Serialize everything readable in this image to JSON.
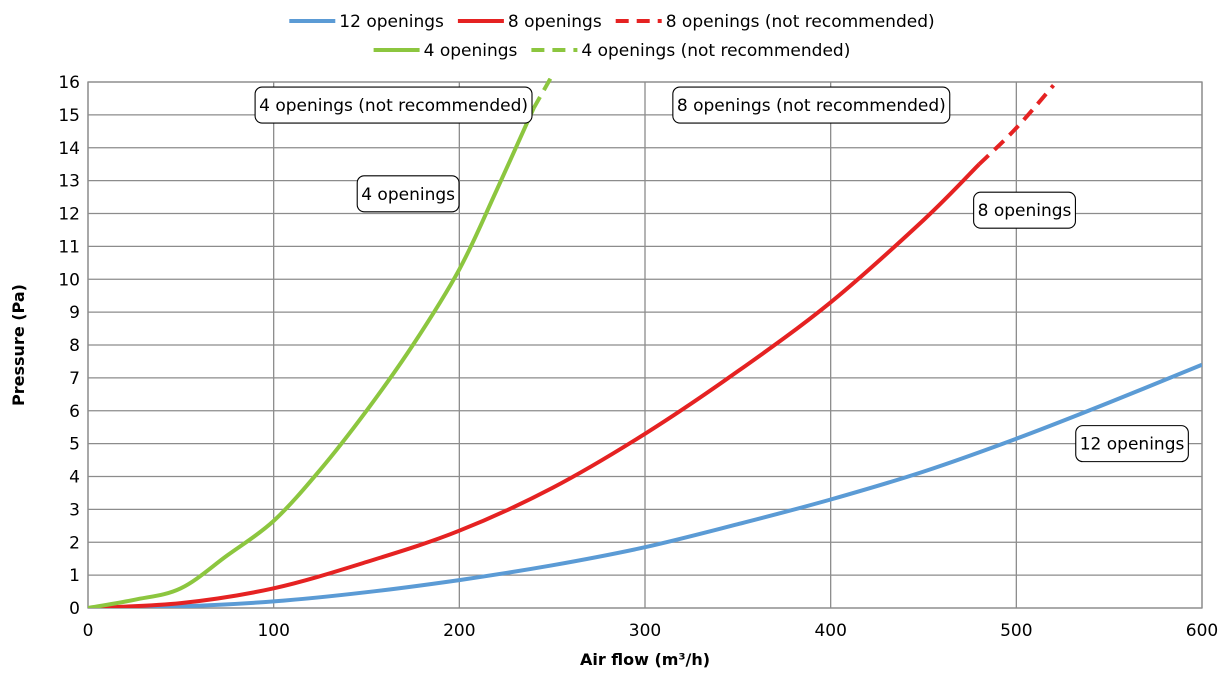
{
  "chart_data": {
    "type": "line",
    "title": "",
    "xlabel": "Air flow (m³/h)",
    "ylabel": "Pressure (Pa)",
    "xlim": [
      0,
      600
    ],
    "ylim": [
      0,
      16
    ],
    "x_ticks": [
      0,
      100,
      200,
      300,
      400,
      500,
      600
    ],
    "y_ticks": [
      0,
      1,
      2,
      3,
      4,
      5,
      6,
      7,
      8,
      9,
      10,
      11,
      12,
      13,
      14,
      15,
      16
    ],
    "grid": true,
    "legend_position": "top",
    "series": [
      {
        "name": "12 openings",
        "color": "#5b9bd5",
        "style": "solid",
        "x": [
          0,
          50,
          100,
          150,
          200,
          250,
          300,
          350,
          400,
          450,
          500,
          550,
          600
        ],
        "y": [
          0,
          0.05,
          0.2,
          0.48,
          0.85,
          1.3,
          1.85,
          2.55,
          3.3,
          4.15,
          5.15,
          6.25,
          7.4
        ]
      },
      {
        "name": "8 openings",
        "color": "#e52222",
        "style": "solid",
        "x": [
          0,
          50,
          100,
          150,
          200,
          250,
          300,
          350,
          400,
          450,
          480
        ],
        "y": [
          0,
          0.15,
          0.6,
          1.4,
          2.35,
          3.65,
          5.3,
          7.2,
          9.3,
          11.8,
          13.5
        ]
      },
      {
        "name": "8 openings (not recommended)",
        "color": "#e52222",
        "style": "dashed",
        "x": [
          480,
          500,
          520
        ],
        "y": [
          13.5,
          14.6,
          15.9
        ]
      },
      {
        "name": "4 openings",
        "color": "#8cc63f",
        "style": "solid",
        "x": [
          0,
          25,
          50,
          75,
          100,
          125,
          150,
          175,
          200,
          220,
          240
        ],
        "y": [
          0,
          0.25,
          0.6,
          1.6,
          2.65,
          4.2,
          6.0,
          8.0,
          10.3,
          12.7,
          15.2
        ]
      },
      {
        "name": "4 openings (not recommended)",
        "color": "#8cc63f",
        "style": "dashed",
        "x": [
          240,
          245,
          250
        ],
        "y": [
          15.2,
          15.7,
          16.2
        ]
      }
    ],
    "annotations": [
      {
        "text": "4 openings (not recommended)",
        "x": 90,
        "y": 15.3
      },
      {
        "text": "4 openings",
        "x": 145,
        "y": 12.6
      },
      {
        "text": "8 openings (not recommended)",
        "x": 315,
        "y": 15.3
      },
      {
        "text": "8 openings",
        "x": 477,
        "y": 12.1
      },
      {
        "text": "12 openings",
        "x": 532,
        "y": 5.0
      }
    ],
    "legend": {
      "rows": [
        [
          "12 openings",
          "8 openings",
          "8 openings (not recommended)"
        ],
        [
          "4 openings",
          "4 openings (not recommended)"
        ]
      ]
    }
  }
}
